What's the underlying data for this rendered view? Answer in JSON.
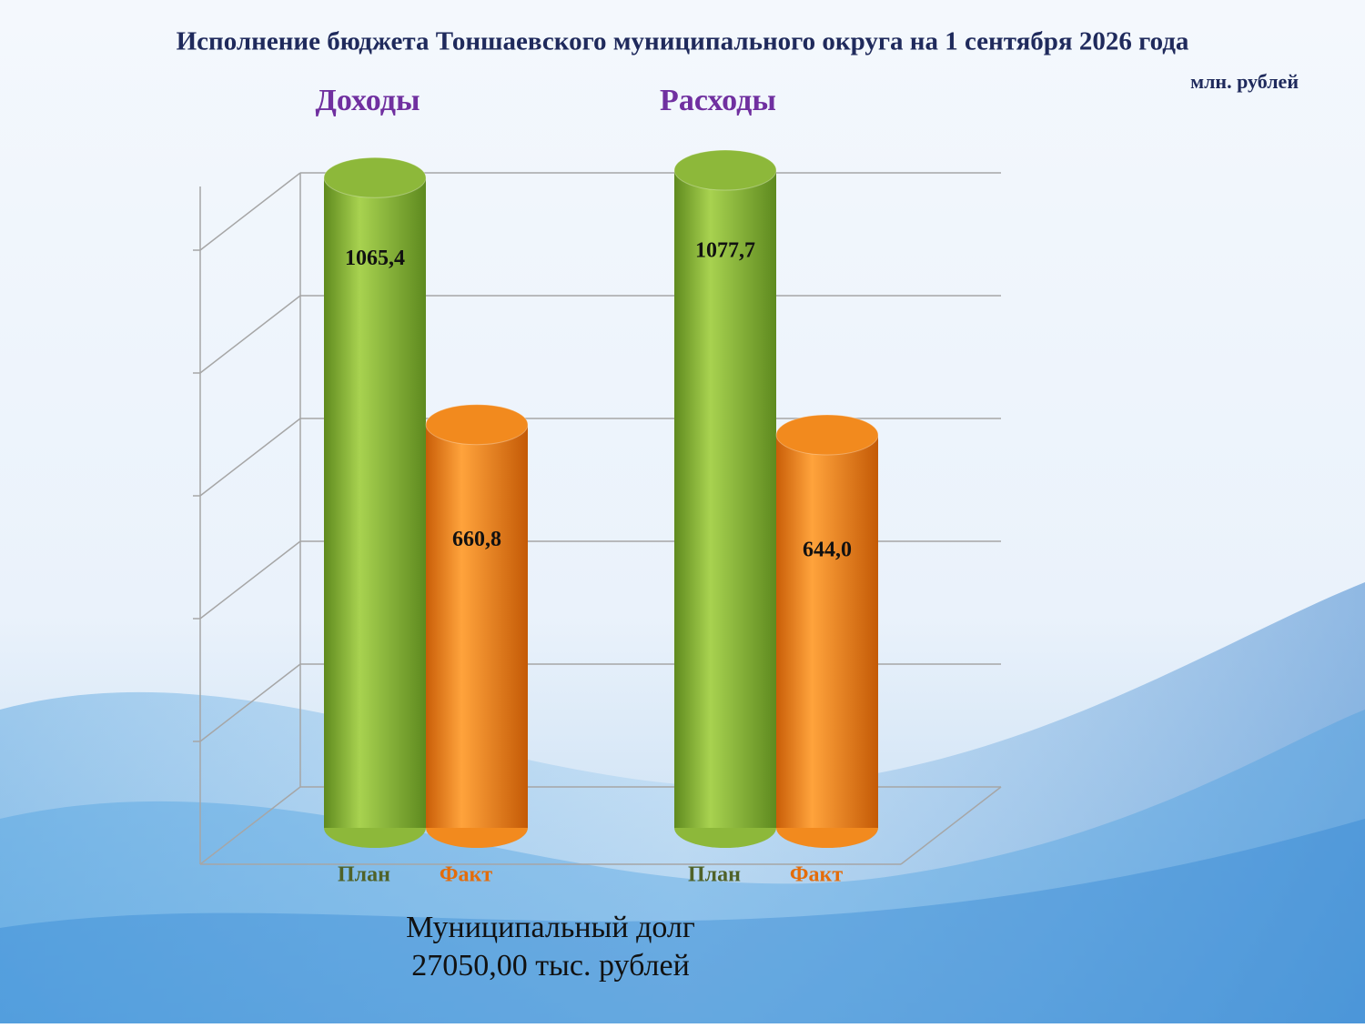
{
  "chart_data": {
    "type": "bar",
    "title": "Исполнение бюджета Тоншаевского муниципального округа на 1  сентября 2026 года",
    "unit": "млн. рублей",
    "categories": [
      "Доходы",
      "Расходы"
    ],
    "series": [
      {
        "name": "План",
        "color": "#8db83a",
        "label_color": "#4f6228",
        "values": [
          1065.4,
          1077.7
        ],
        "value_labels": [
          "1065,4",
          "1077,7"
        ]
      },
      {
        "name": "Факт",
        "color": "#f28a1e",
        "label_color": "#e46c0a",
        "values": [
          660.8,
          644.0
        ],
        "value_labels": [
          "660,8",
          "644,0"
        ]
      }
    ],
    "ylim": [
      0,
      1200
    ],
    "annotations": [
      "Муниципальный долг",
      "27050,00 тыс. рублей"
    ]
  }
}
